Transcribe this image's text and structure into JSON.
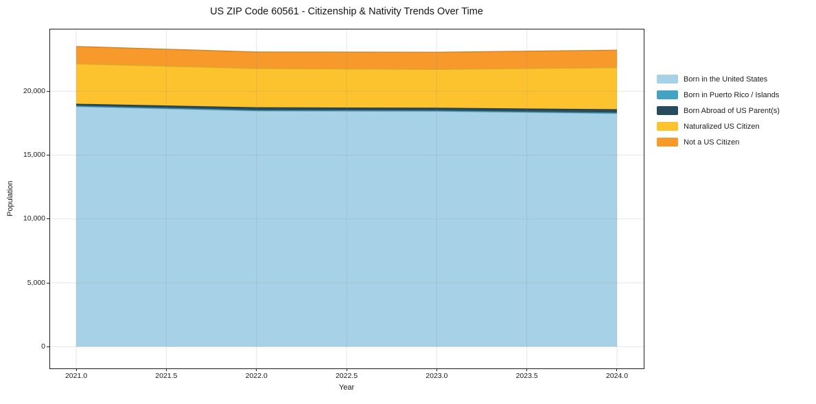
{
  "title": "US ZIP Code 60561 - Citizenship & Nativity Trends Over Time",
  "chart_data": {
    "type": "area",
    "stacked": true,
    "title": "US ZIP Code 60561 - Citizenship & Nativity Trends Over Time",
    "xlabel": "Year",
    "ylabel": "Population",
    "x": [
      2021,
      2022,
      2023,
      2024
    ],
    "series": [
      {
        "name": "Born in the United States",
        "color": "#a7d1e6",
        "values": [
          18800,
          18450,
          18420,
          18250
        ]
      },
      {
        "name": "Born in Puerto Rico / Islands",
        "color": "#44a2c2",
        "values": [
          30,
          40,
          40,
          40
        ]
      },
      {
        "name": "Born Abroad of US Parent(s)",
        "color": "#284b5d",
        "values": [
          150,
          220,
          210,
          260
        ]
      },
      {
        "name": "Naturalized US Citizen",
        "color": "#fdc32e",
        "values": [
          3170,
          3070,
          3040,
          3300
        ]
      },
      {
        "name": "Not a US Citizen",
        "color": "#f8992b",
        "values": [
          1350,
          1290,
          1340,
          1360
        ]
      }
    ],
    "x_ticks": {
      "values": [
        2021.0,
        2021.5,
        2022.0,
        2022.5,
        2023.0,
        2023.5,
        2024.0
      ],
      "labels": [
        "2021.0",
        "2021.5",
        "2022.0",
        "2022.5",
        "2023.0",
        "2023.5",
        "2024.0"
      ]
    },
    "y_ticks": {
      "values": [
        0,
        5000,
        10000,
        15000,
        20000
      ],
      "labels": [
        "0",
        "5,000",
        "10,000",
        "15,000",
        "20,000"
      ]
    },
    "xlim": [
      2020.8553,
      2024.1485
    ],
    "ylim": [
      -1700,
      24835
    ],
    "grid": true,
    "grid_color": "#8c8c8c",
    "legend_position": "right",
    "spine_color": "#1c1c1c",
    "background": "#ffffff"
  }
}
